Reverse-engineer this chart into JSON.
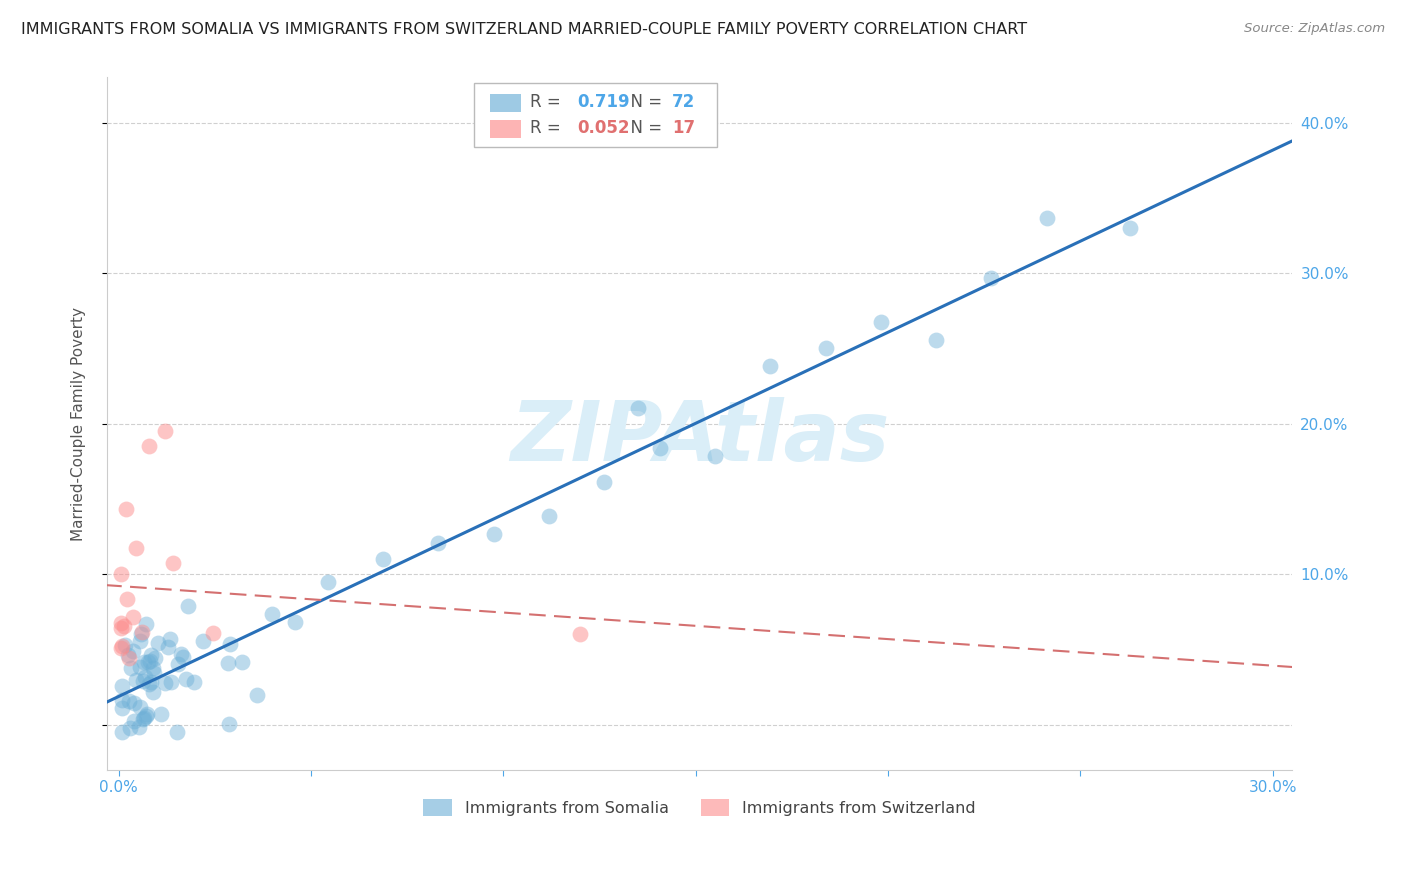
{
  "title": "IMMIGRANTS FROM SOMALIA VS IMMIGRANTS FROM SWITZERLAND MARRIED-COUPLE FAMILY POVERTY CORRELATION CHART",
  "source": "Source: ZipAtlas.com",
  "ylabel": "Married-Couple Family Poverty",
  "xlim": [
    -0.003,
    0.305
  ],
  "ylim": [
    -0.03,
    0.43
  ],
  "ytick_vals": [
    0.0,
    0.1,
    0.2,
    0.3,
    0.4
  ],
  "ytick_labels": [
    "",
    "10.0%",
    "20.0%",
    "30.0%",
    "40.0%"
  ],
  "xtick_vals": [
    0.0,
    0.05,
    0.1,
    0.15,
    0.2,
    0.25,
    0.3
  ],
  "xtick_labels": [
    "0.0%",
    "",
    "",
    "",
    "",
    "",
    "30.0%"
  ],
  "somalia_color": "#6baed6",
  "switzerland_color": "#fc8d8d",
  "somalia_R": 0.719,
  "somalia_N": 72,
  "switzerland_R": 0.052,
  "switzerland_N": 17,
  "watermark": "ZIPAtlas",
  "watermark_color": "#daeef8",
  "background_color": "#ffffff",
  "grid_color": "#d0d0d0",
  "title_fontsize": 11.5,
  "label_fontsize": 11,
  "tick_fontsize": 11,
  "legend_fontsize": 12
}
